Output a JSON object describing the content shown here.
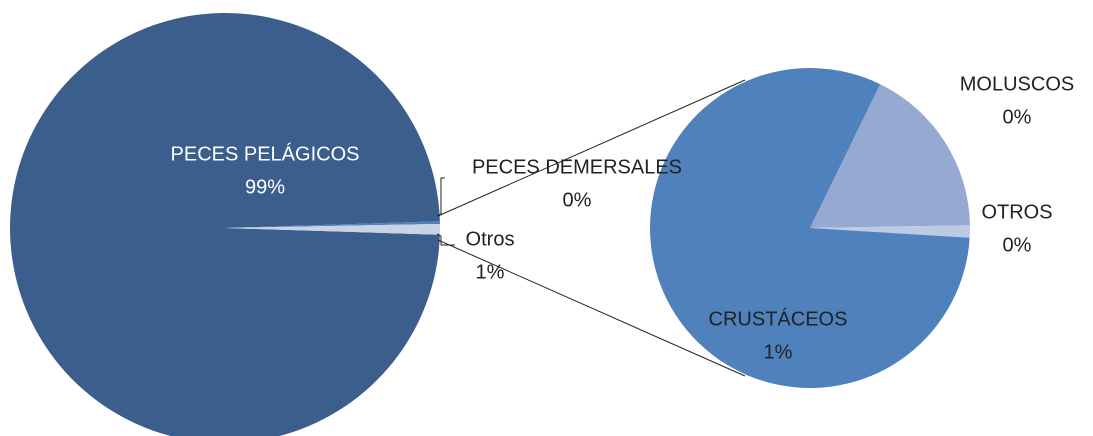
{
  "chart_data": [
    {
      "type": "pie",
      "categories": [
        "PECES PELÁGICOS",
        "PECES DEMERSALES",
        "Otros"
      ],
      "values": [
        99,
        0.2,
        0.8
      ],
      "value_labels": [
        "99%",
        "0%",
        "1%"
      ],
      "colors": [
        "#3b5e8c",
        "#4f81bd",
        "#c9d3e6"
      ]
    },
    {
      "type": "pie",
      "categories": [
        "MOLUSCOS",
        "OTROS",
        "CRUSTÁCEOS"
      ],
      "values": [
        0.14,
        0.01,
        0.65
      ],
      "value_labels": [
        "0%",
        "0%",
        "1%"
      ],
      "colors": [
        "#95a9d2",
        "#bccae4",
        "#4f81bd"
      ]
    }
  ]
}
